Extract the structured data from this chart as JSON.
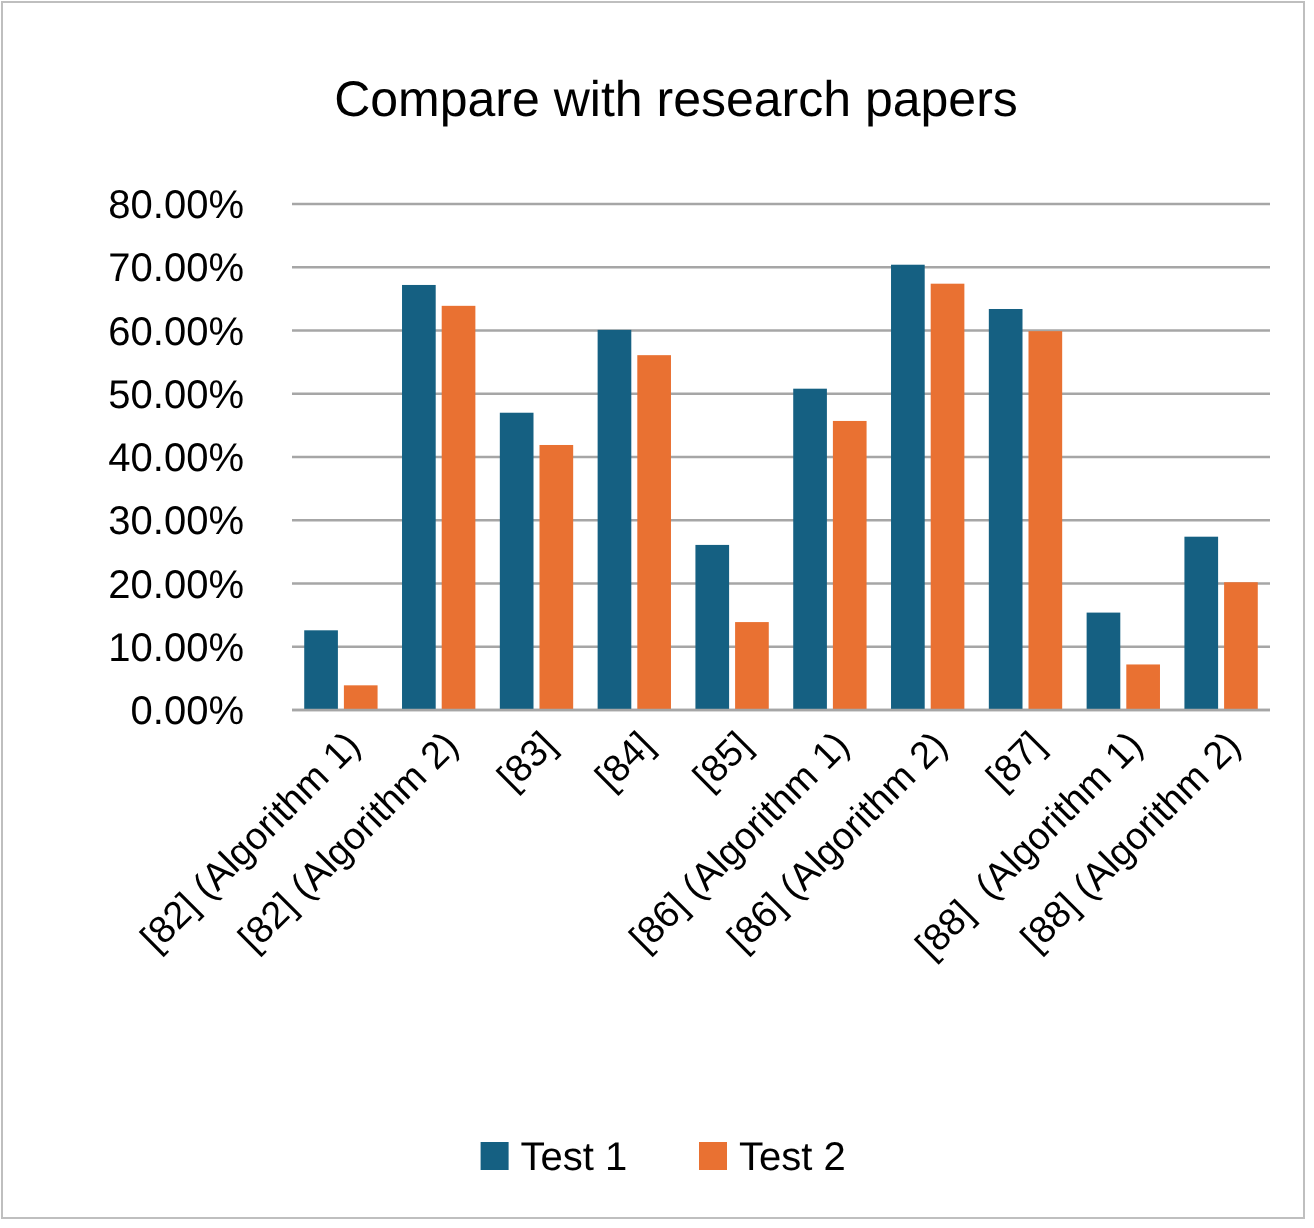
{
  "chart_data": {
    "type": "bar",
    "title": "Compare with research papers",
    "categories": [
      "[82] (Algorithm 1)",
      "[82] (Algorithm 2)",
      "[83]",
      "[84]",
      "[85]",
      "[86] (Algorithm 1)",
      "[86] (Algorithm 2)",
      "[87]",
      "[88]  (Algorithm 1)",
      "[88] (Algorithm 2)"
    ],
    "series": [
      {
        "name": "Test 1",
        "color": "#156082",
        "values": [
          12.6,
          67.2,
          47.0,
          60.1,
          26.1,
          50.8,
          70.4,
          63.4,
          15.4,
          27.4
        ]
      },
      {
        "name": "Test 2",
        "color": "#e97132",
        "values": [
          3.9,
          63.9,
          41.9,
          56.1,
          13.9,
          45.7,
          67.4,
          59.9,
          7.2,
          20.2
        ]
      }
    ],
    "ylim": [
      0,
      80
    ],
    "yticks": [
      {
        "value": 0,
        "label": "0.00%"
      },
      {
        "value": 10,
        "label": "10.00%"
      },
      {
        "value": 20,
        "label": "20.00%"
      },
      {
        "value": 30,
        "label": "30.00%"
      },
      {
        "value": 40,
        "label": "40.00%"
      },
      {
        "value": 50,
        "label": "50.00%"
      },
      {
        "value": 60,
        "label": "60.00%"
      },
      {
        "value": 70,
        "label": "70.00%"
      },
      {
        "value": 80,
        "label": "80.00%"
      }
    ],
    "grid": "y",
    "legend": "bottom"
  }
}
